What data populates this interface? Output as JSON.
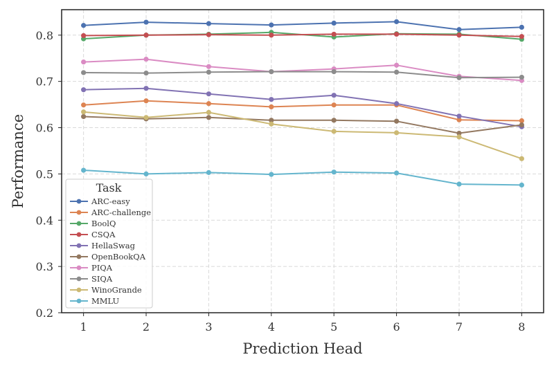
{
  "chart_data": {
    "type": "line",
    "xlabel": "Prediction Head",
    "ylabel": "Performance",
    "x": [
      1,
      2,
      3,
      4,
      5,
      6,
      7,
      8
    ],
    "xlim": [
      0.65,
      8.35
    ],
    "ylim": [
      0.2,
      0.855
    ],
    "yticks": [
      0.2,
      0.3,
      0.4,
      0.5,
      0.6,
      0.7,
      0.8
    ],
    "ytick_labels": [
      "0.2",
      "0.3",
      "0.4",
      "0.5",
      "0.6",
      "0.7",
      "0.8"
    ],
    "xtick_labels": [
      "1",
      "2",
      "3",
      "4",
      "5",
      "6",
      "7",
      "8"
    ],
    "grid": true,
    "legend_title": "Task",
    "legend_position": "lower-left",
    "series": [
      {
        "name": "ARC-easy",
        "color": "#4c72b0",
        "values": [
          0.821,
          0.828,
          0.825,
          0.822,
          0.826,
          0.829,
          0.812,
          0.817
        ]
      },
      {
        "name": "ARC-challenge",
        "color": "#dd8452",
        "values": [
          0.649,
          0.658,
          0.652,
          0.645,
          0.649,
          0.649,
          0.617,
          0.615
        ]
      },
      {
        "name": "BoolQ",
        "color": "#55a868",
        "values": [
          0.792,
          0.8,
          0.802,
          0.806,
          0.796,
          0.803,
          0.802,
          0.791
        ]
      },
      {
        "name": "CSQA",
        "color": "#c44e52",
        "values": [
          0.799,
          0.8,
          0.801,
          0.8,
          0.802,
          0.802,
          0.8,
          0.797
        ]
      },
      {
        "name": "HellaSwag",
        "color": "#8172b3",
        "values": [
          0.682,
          0.685,
          0.673,
          0.661,
          0.67,
          0.652,
          0.625,
          0.602
        ]
      },
      {
        "name": "OpenBookQA",
        "color": "#937860",
        "values": [
          0.624,
          0.619,
          0.622,
          0.616,
          0.616,
          0.614,
          0.588,
          0.606
        ]
      },
      {
        "name": "PIQA",
        "color": "#da8bc3",
        "values": [
          0.742,
          0.748,
          0.732,
          0.721,
          0.727,
          0.735,
          0.711,
          0.702
        ]
      },
      {
        "name": "SIQA",
        "color": "#8c8c8c",
        "values": [
          0.719,
          0.718,
          0.72,
          0.721,
          0.721,
          0.72,
          0.708,
          0.709
        ]
      },
      {
        "name": "WinoGrande",
        "color": "#ccb974",
        "values": [
          0.634,
          0.622,
          0.633,
          0.608,
          0.592,
          0.589,
          0.58,
          0.533
        ]
      },
      {
        "name": "MMLU",
        "color": "#64b5cd",
        "values": [
          0.508,
          0.5,
          0.503,
          0.499,
          0.504,
          0.502,
          0.478,
          0.476
        ]
      }
    ]
  }
}
